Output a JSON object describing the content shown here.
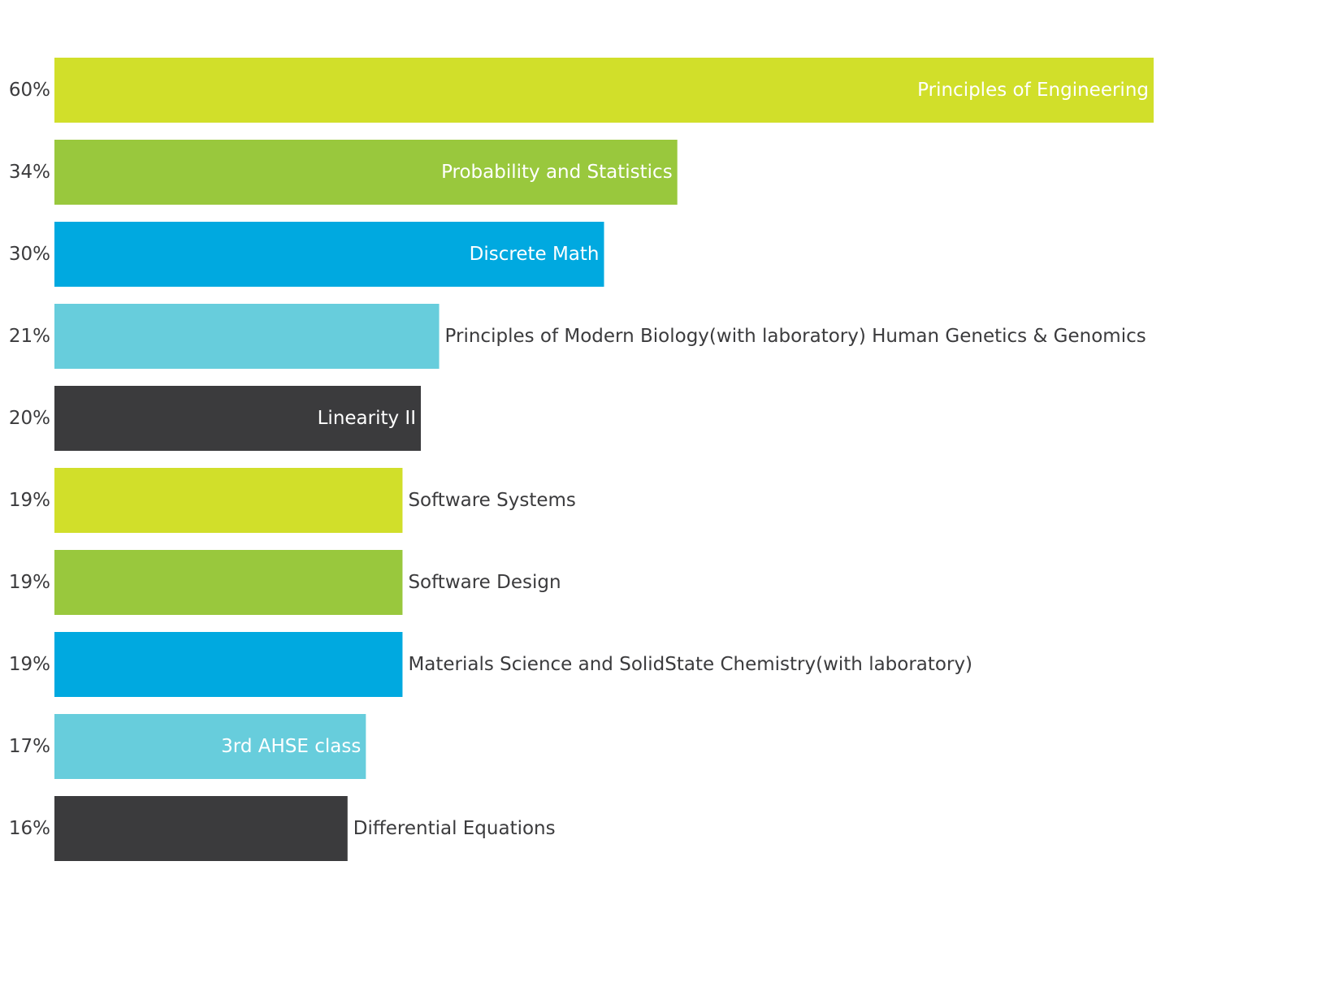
{
  "chart_data": {
    "type": "bar",
    "orientation": "horizontal",
    "title": "",
    "xlabel": "",
    "ylabel": "",
    "grid": false,
    "legend": "none",
    "xlim": [
      0,
      60
    ],
    "categories": [
      "Principles of Engineering",
      "Probability and Statistics",
      "Discrete Math",
      "Principles of Modern Biology(with laboratory) Human Genetics & Genomics",
      "Linearity II",
      "Software Systems",
      "Software Design",
      "Materials Science and SolidState Chemistry(with laboratory)",
      "3rd AHSE class",
      "Differential Equations"
    ],
    "values": [
      60,
      34,
      30,
      21,
      20,
      19,
      19,
      19,
      17,
      16
    ],
    "value_labels": [
      "60%",
      "34%",
      "30%",
      "21%",
      "20%",
      "19%",
      "19%",
      "19%",
      "17%",
      "16%"
    ],
    "colors": [
      "#d1df2a",
      "#99c83d",
      "#00a9e0",
      "#67cddc",
      "#3b3b3d",
      "#d1df2a",
      "#99c83d",
      "#00a9e0",
      "#67cddc",
      "#3b3b3d"
    ],
    "label_inside": [
      true,
      true,
      true,
      false,
      true,
      false,
      false,
      false,
      true,
      false
    ],
    "text_color_inside": "#ffffff",
    "text_color_outside": "#3b3b3d"
  }
}
